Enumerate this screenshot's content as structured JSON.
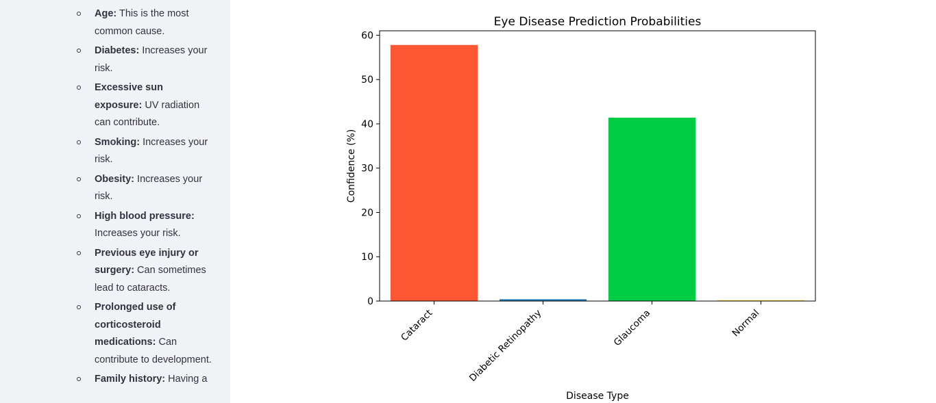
{
  "sidebar": {
    "risk_factors": [
      {
        "term": "Age:",
        "desc": " This is the most common cause."
      },
      {
        "term": "Diabetes:",
        "desc": " Increases your risk."
      },
      {
        "term": "Excessive sun exposure:",
        "desc": " UV radiation can contribute."
      },
      {
        "term": "Smoking:",
        "desc": " Increases your risk."
      },
      {
        "term": "Obesity:",
        "desc": " Increases your risk."
      },
      {
        "term": "High blood pressure:",
        "desc": " Increases your risk."
      },
      {
        "term": "Previous eye injury or surgery:",
        "desc": " Can sometimes lead to cataracts."
      },
      {
        "term": "Prolonged use of corticosteroid medications:",
        "desc": " Can contribute to development."
      },
      {
        "term": "Family history:",
        "desc": " Having a"
      }
    ]
  },
  "chart_data": {
    "type": "bar",
    "title": "Eye Disease Prediction Probabilities",
    "xlabel": "Disease Type",
    "ylabel": "Confidence (%)",
    "categories": [
      "Cataract",
      "Diabetic Retinopathy",
      "Glaucoma",
      "Normal"
    ],
    "values": [
      57.8,
      0.4,
      41.4,
      0.2
    ],
    "colors": [
      "#ff5733",
      "#1f77b4",
      "#00cc44",
      "#ffdd33"
    ],
    "ylim": [
      0,
      61
    ],
    "yticks": [
      0,
      10,
      20,
      30,
      40,
      50,
      60
    ],
    "grid": false
  }
}
